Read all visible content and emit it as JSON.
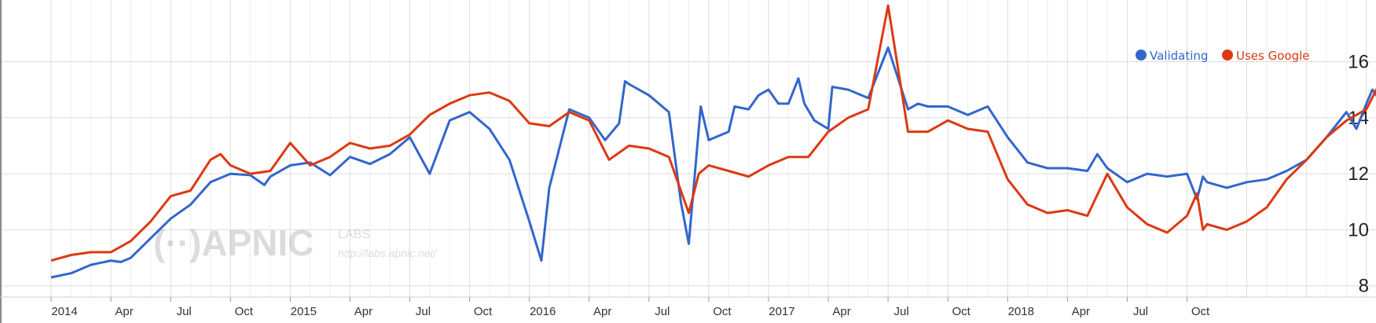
{
  "chart_data": {
    "type": "line",
    "title": "",
    "xlabel": "",
    "ylabel": "",
    "ylim": [
      7.6,
      18.2
    ],
    "yticks": [
      "8",
      "10",
      "12",
      "14",
      "16"
    ],
    "x_tick_labels": [
      "2014",
      "Apr",
      "Jul",
      "Oct",
      "2015",
      "Apr",
      "Jul",
      "Oct",
      "2016",
      "Apr",
      "Jul",
      "Oct",
      "2017",
      "Apr",
      "Jul",
      "Oct",
      "2018",
      "Apr",
      "Jul",
      "Oct"
    ],
    "grid": true,
    "legend_position": "top-right",
    "series": [
      {
        "name": "Validating",
        "color": "#3366cc",
        "points": [
          [
            0,
            8.3
          ],
          [
            1,
            8.45
          ],
          [
            2,
            8.75
          ],
          [
            3,
            8.9
          ],
          [
            3.5,
            8.85
          ],
          [
            4,
            9.0
          ],
          [
            5,
            9.7
          ],
          [
            6,
            10.4
          ],
          [
            7,
            10.9
          ],
          [
            8,
            11.7
          ],
          [
            9,
            12.0
          ],
          [
            10,
            11.95
          ],
          [
            10.7,
            11.6
          ],
          [
            11,
            11.9
          ],
          [
            12,
            12.3
          ],
          [
            13,
            12.4
          ],
          [
            14,
            11.95
          ],
          [
            15,
            12.6
          ],
          [
            16,
            12.35
          ],
          [
            17,
            12.7
          ],
          [
            18,
            13.3
          ],
          [
            19,
            12.0
          ],
          [
            20,
            13.9
          ],
          [
            21,
            14.2
          ],
          [
            22,
            13.6
          ],
          [
            23,
            12.5
          ],
          [
            24,
            10.3
          ],
          [
            24.6,
            8.9
          ],
          [
            25,
            11.5
          ],
          [
            26,
            14.3
          ],
          [
            27,
            14.0
          ],
          [
            27.8,
            13.2
          ],
          [
            28.5,
            13.8
          ],
          [
            28.8,
            15.3
          ],
          [
            29,
            15.2
          ],
          [
            30,
            14.8
          ],
          [
            31,
            14.2
          ],
          [
            31.6,
            11.0
          ],
          [
            32,
            9.5
          ],
          [
            32.6,
            14.4
          ],
          [
            33,
            13.2
          ],
          [
            34,
            13.5
          ],
          [
            34.3,
            14.4
          ],
          [
            35,
            14.3
          ],
          [
            35.5,
            14.8
          ],
          [
            36,
            15.0
          ],
          [
            36.5,
            14.5
          ],
          [
            37,
            14.5
          ],
          [
            37.5,
            15.4
          ],
          [
            37.8,
            14.5
          ],
          [
            38.3,
            13.9
          ],
          [
            39,
            13.6
          ],
          [
            39.2,
            15.1
          ],
          [
            40,
            15.0
          ],
          [
            41,
            14.7
          ],
          [
            42,
            16.5
          ],
          [
            43,
            14.3
          ],
          [
            43.5,
            14.5
          ],
          [
            44,
            14.4
          ],
          [
            45,
            14.4
          ],
          [
            46,
            14.1
          ],
          [
            47,
            14.4
          ],
          [
            48,
            13.3
          ],
          [
            49,
            12.4
          ],
          [
            50,
            12.2
          ],
          [
            51,
            12.2
          ],
          [
            52,
            12.1
          ],
          [
            52.5,
            12.7
          ],
          [
            53,
            12.2
          ],
          [
            54,
            11.7
          ],
          [
            55,
            12.0
          ],
          [
            56,
            11.9
          ],
          [
            57,
            12.0
          ],
          [
            57.5,
            11.1
          ],
          [
            57.8,
            11.9
          ],
          [
            58,
            11.7
          ],
          [
            58.5,
            11.6
          ],
          [
            59,
            11.5
          ],
          [
            60,
            11.7
          ],
          [
            61,
            11.8
          ],
          [
            62,
            12.1
          ],
          [
            63,
            12.5
          ],
          [
            64,
            13.3
          ],
          [
            65,
            14.2
          ],
          [
            65.5,
            13.6
          ],
          [
            66,
            14.5
          ],
          [
            66.3,
            15.0
          ],
          [
            67,
            14.3
          ],
          [
            67.5,
            14.1
          ],
          [
            68,
            14.7
          ],
          [
            68.5,
            12.8
          ],
          [
            68.8,
            12.0
          ]
        ]
      },
      {
        "name": "Uses Google",
        "color": "#dc3912",
        "points": [
          [
            0,
            8.9
          ],
          [
            1,
            9.1
          ],
          [
            2,
            9.2
          ],
          [
            3,
            9.2
          ],
          [
            4,
            9.6
          ],
          [
            5,
            10.3
          ],
          [
            6,
            11.2
          ],
          [
            7,
            11.4
          ],
          [
            8,
            12.5
          ],
          [
            8.5,
            12.7
          ],
          [
            9,
            12.3
          ],
          [
            10,
            12.0
          ],
          [
            11,
            12.1
          ],
          [
            12,
            13.1
          ],
          [
            13,
            12.3
          ],
          [
            14,
            12.6
          ],
          [
            15,
            13.1
          ],
          [
            16,
            12.9
          ],
          [
            17,
            13.0
          ],
          [
            18,
            13.4
          ],
          [
            19,
            14.1
          ],
          [
            20,
            14.5
          ],
          [
            21,
            14.8
          ],
          [
            22,
            14.9
          ],
          [
            23,
            14.6
          ],
          [
            24,
            13.8
          ],
          [
            25,
            13.7
          ],
          [
            26,
            14.2
          ],
          [
            27,
            13.9
          ],
          [
            28,
            12.5
          ],
          [
            29,
            13.0
          ],
          [
            30,
            12.9
          ],
          [
            31,
            12.6
          ],
          [
            32,
            10.6
          ],
          [
            32.5,
            12.0
          ],
          [
            33,
            12.3
          ],
          [
            34,
            12.1
          ],
          [
            35,
            11.9
          ],
          [
            36,
            12.3
          ],
          [
            37,
            12.6
          ],
          [
            38,
            12.6
          ],
          [
            39,
            13.5
          ],
          [
            40,
            14.0
          ],
          [
            41,
            14.3
          ],
          [
            42,
            18.0
          ],
          [
            43,
            13.5
          ],
          [
            44,
            13.5
          ],
          [
            45,
            13.9
          ],
          [
            46,
            13.6
          ],
          [
            47,
            13.5
          ],
          [
            48,
            11.8
          ],
          [
            49,
            10.9
          ],
          [
            50,
            10.6
          ],
          [
            51,
            10.7
          ],
          [
            52,
            10.5
          ],
          [
            53,
            12.0
          ],
          [
            54,
            10.8
          ],
          [
            55,
            10.2
          ],
          [
            56,
            9.9
          ],
          [
            57,
            10.5
          ],
          [
            57.5,
            11.3
          ],
          [
            57.8,
            10.0
          ],
          [
            58,
            10.2
          ],
          [
            59,
            10.0
          ],
          [
            60,
            10.3
          ],
          [
            61,
            10.8
          ],
          [
            62,
            11.8
          ],
          [
            63,
            12.5
          ],
          [
            64,
            13.3
          ],
          [
            65,
            13.9
          ],
          [
            66,
            14.3
          ],
          [
            66.5,
            15.0
          ],
          [
            67,
            14.5
          ],
          [
            67.5,
            14.2
          ],
          [
            68,
            13.8
          ],
          [
            68.5,
            14.5
          ],
          [
            68.8,
            15.1
          ]
        ]
      }
    ]
  }
}
